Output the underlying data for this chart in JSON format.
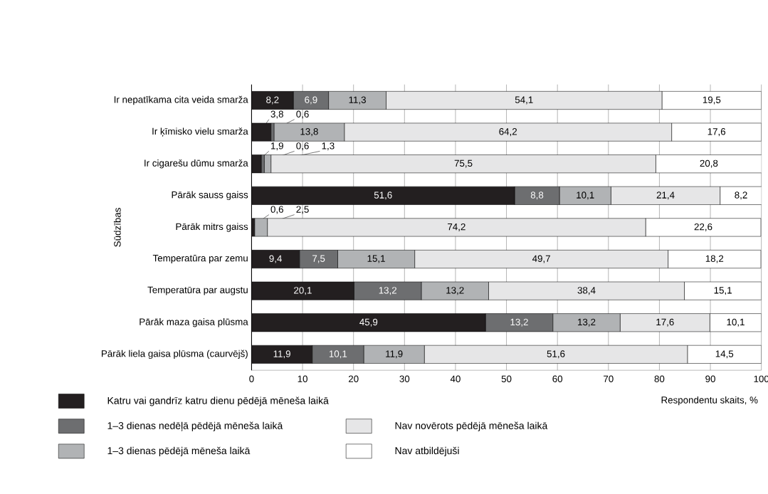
{
  "chart_data": {
    "type": "bar",
    "orientation": "horizontal",
    "stacked": true,
    "ylabel": "Sūdzības",
    "xlabel": "Respondentu skaits, %",
    "categories": [
      "Ir nepatīkama cita veida smarža",
      "Ir ķīmisko vielu smarža",
      "Ir cigarešu dūmu smarža",
      "Pārāk sauss gaiss",
      "Pārāk mitrs gaiss",
      "Temperatūra par zemu",
      "Temperatūra par augstu",
      "Pārāk maza gaisa plūsma",
      "Pārāk liela gaisa plūsma (caurvējš)"
    ],
    "series": [
      {
        "name": "Katru vai gandrīz katru dienu pēdējā mēneša laikā",
        "color": "#231f20",
        "values": [
          8.2,
          3.8,
          1.9,
          51.6,
          0.6,
          9.4,
          20.1,
          45.9,
          11.9
        ],
        "value_labels": [
          "8,2",
          "3,8",
          "1,9",
          "51,6",
          "0,6",
          "9,4",
          "20,1",
          "45,9",
          "11,9"
        ]
      },
      {
        "name": "1–3 dienas nedēļā pēdējā mēneša laikā",
        "color": "#6d6e70",
        "values": [
          6.9,
          0.6,
          0.6,
          8.8,
          0,
          7.5,
          13.2,
          13.2,
          10.1
        ],
        "value_labels": [
          "6,9",
          "0,6",
          "0,6",
          "8,8",
          null,
          "7,5",
          "13,2",
          "13,2",
          "10,1"
        ]
      },
      {
        "name": "1–3 dienas pēdējā mēneša laikā",
        "color": "#b1b3b5",
        "values": [
          11.3,
          13.8,
          1.3,
          10.1,
          2.5,
          15.1,
          13.2,
          13.2,
          11.9
        ],
        "value_labels": [
          "11,3",
          "13,8",
          "1,3",
          "10,1",
          "2,5",
          "15,1",
          "13,2",
          "13,2",
          "11,9"
        ]
      },
      {
        "name": "Nav novērots pēdējā mēneša laikā",
        "color": "#e6e6e7",
        "values": [
          54.1,
          64.2,
          75.5,
          21.4,
          74.2,
          49.7,
          38.4,
          17.6,
          51.6
        ],
        "value_labels": [
          "54,1",
          "64,2",
          "75,5",
          "21,4",
          "74,2",
          "49,7",
          "38,4",
          "17,6",
          "51,6"
        ]
      },
      {
        "name": "Nav atbildējuši",
        "color": "#ffffff",
        "values": [
          19.5,
          17.6,
          20.8,
          8.2,
          22.6,
          18.2,
          15.1,
          10.1,
          14.5
        ],
        "value_labels": [
          "19,5",
          "17,6",
          "20,8",
          "8,2",
          "22,6",
          "18,2",
          "15,1",
          "10,1",
          "14,5"
        ]
      }
    ],
    "xlim": [
      0,
      100
    ],
    "xticks": [
      0,
      10,
      20,
      30,
      40,
      50,
      60,
      70,
      80,
      90,
      100
    ],
    "grid": "x",
    "legend": "bottom",
    "data_labels": true
  }
}
